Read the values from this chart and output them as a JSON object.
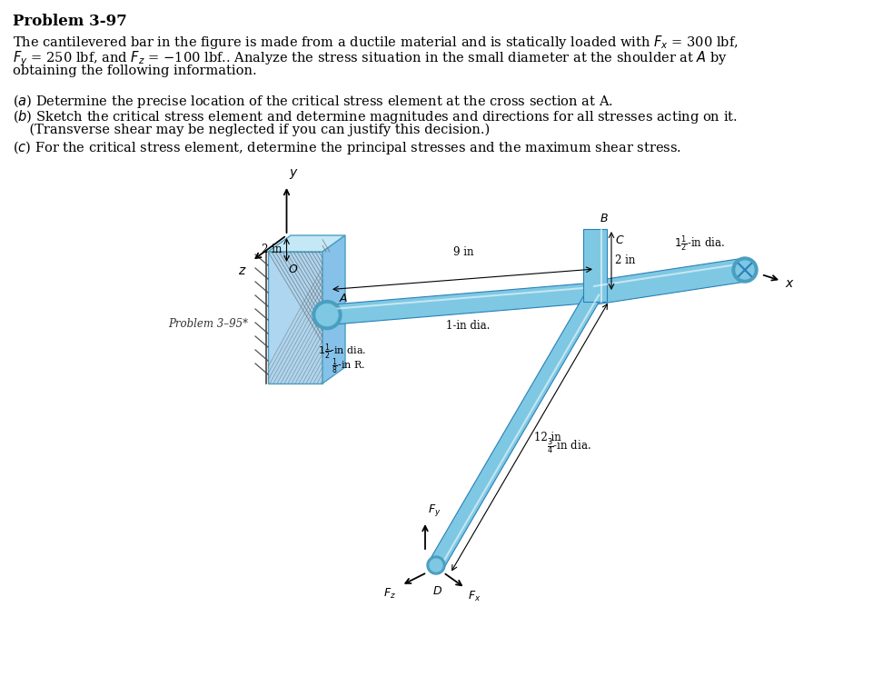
{
  "title": "Problem 3-97",
  "bg_color": "#ffffff",
  "text_color": "#000000",
  "fig_width": 9.61,
  "fig_height": 7.67,
  "bar_color": "#7ec8e3",
  "bar_color_light": "#b3dff0",
  "bar_color_dark": "#4a9fc0",
  "bar_color_mid": "#5bb3d0",
  "wall_color_front": "#aed6f1",
  "wall_color_side": "#85c1e9",
  "wall_color_top": "#c5e8f7",
  "hatch_color": "#555555",
  "dim_color": "#000000",
  "problem_ref": "Problem 3–95*",
  "text_lines": [
    "The cantilevered bar in the figure is made from a ductile material and is statically loaded with $F_x$ = 300 lbf,",
    "$F_y$ = 250 lbf, and $F_z$ = $-$100 lbf.. Analyze the stress situation in the small diameter at the shoulder at $A$ by",
    "obtaining the following information."
  ],
  "item_a": "($a$) Determine the precise location of the critical stress element at the cross section at A.",
  "item_b1": "($b$) Sketch the critical stress element and determine magnitudes and directions for all stresses acting on it.",
  "item_b2": "    (Transverse shear may be neglected if you can justify this decision.)",
  "item_c": "($c$) For the critical stress element, determine the principal stresses and the maximum shear stress."
}
